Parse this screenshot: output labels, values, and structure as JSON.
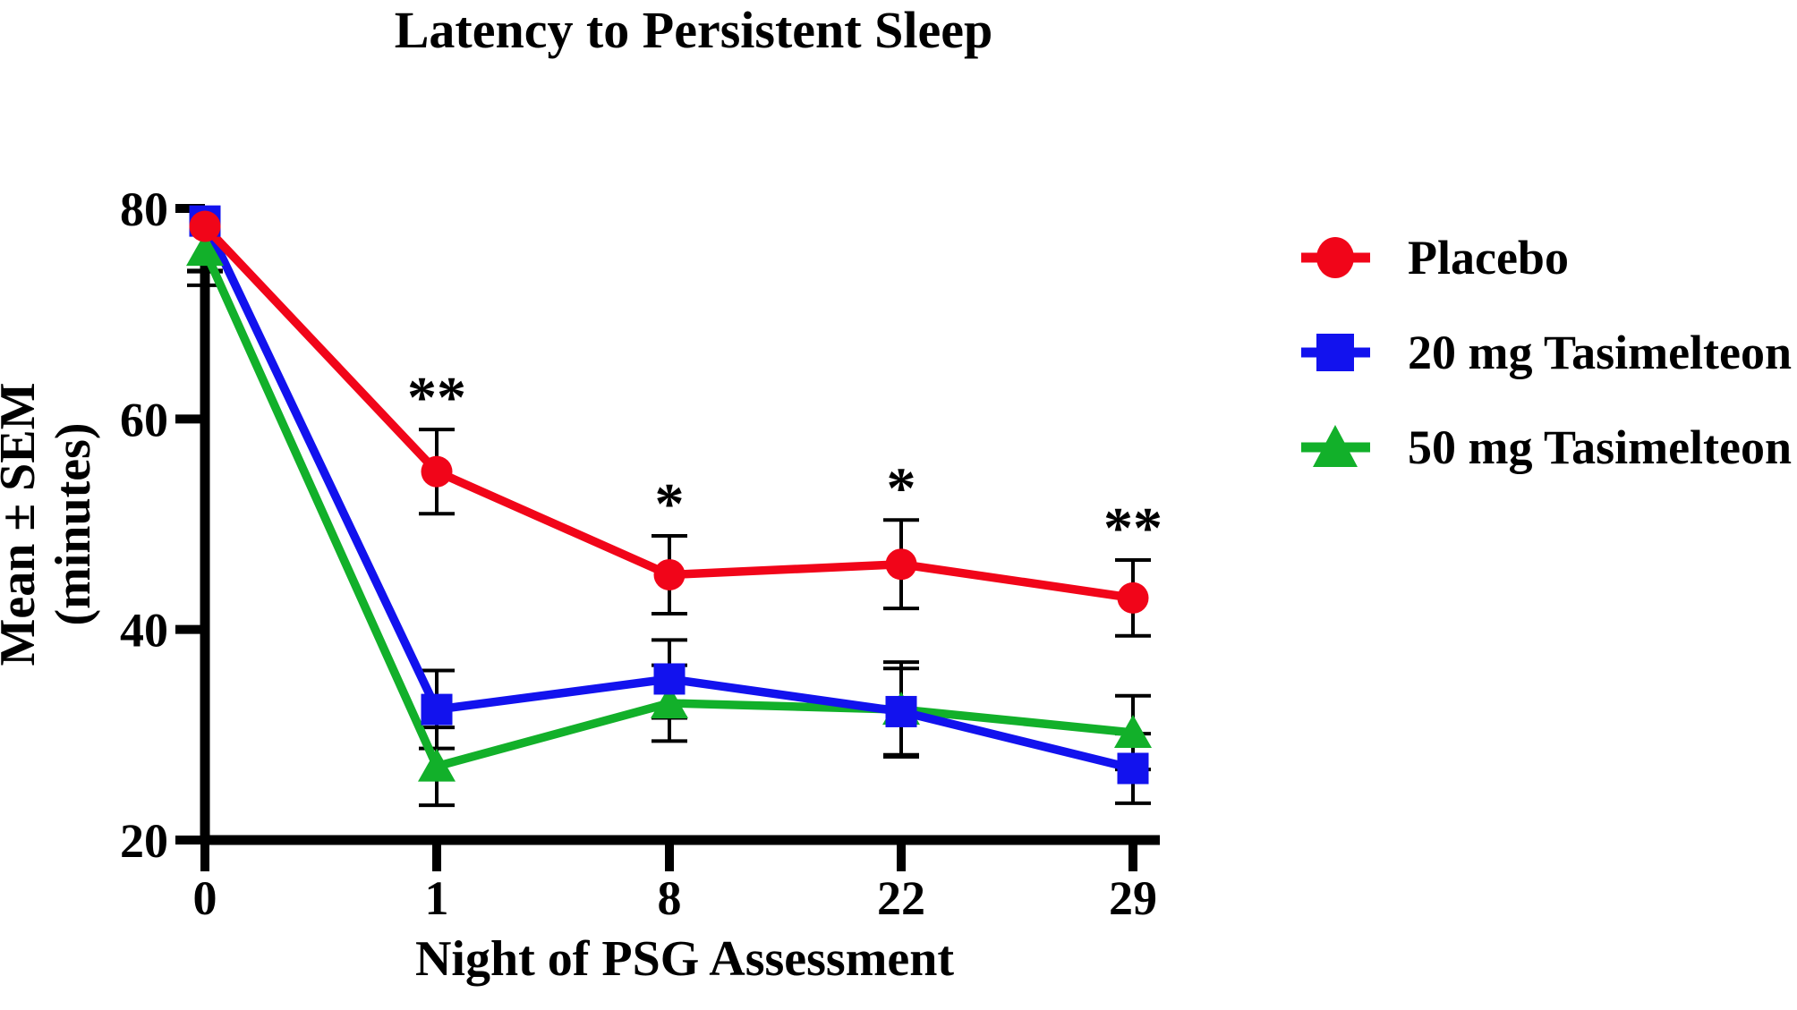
{
  "title": "Latency to Persistent Sleep",
  "chart_data": {
    "type": "line",
    "title": "Latency to Persistent Sleep",
    "xlabel": "Night of PSG Assessment",
    "ylabel_line1": "Mean ± SEM",
    "ylabel_line2": "(minutes)",
    "categories": [
      "0",
      "1",
      "8",
      "22",
      "29"
    ],
    "yticks": [
      20,
      40,
      60,
      80
    ],
    "ylim": [
      20,
      80
    ],
    "grid": false,
    "legend_position": "right",
    "error_bars": "SEM, black caps; upper half hidden behind markers at night 0",
    "series": [
      {
        "name": "Placebo",
        "marker": "circle",
        "color": "#f10519",
        "values": [
          78.3,
          55.0,
          45.2,
          46.2,
          43.0
        ],
        "sem": [
          4.2,
          4.0,
          3.7,
          4.2,
          3.6
        ],
        "upper_error_bar_shown": [
          false,
          true,
          true,
          true,
          true
        ]
      },
      {
        "name": "20 mg Tasimelteon",
        "marker": "square",
        "color": "#1212ee",
        "values": [
          78.8,
          32.4,
          35.3,
          32.2,
          26.8
        ],
        "sem": [
          4.8,
          3.7,
          3.7,
          4.1,
          3.3
        ],
        "upper_error_bar_shown": [
          false,
          true,
          true,
          true,
          true
        ]
      },
      {
        "name": "50 mg Tasimelteon",
        "marker": "triangle",
        "color": "#12b02a",
        "values": [
          76.0,
          27.0,
          33.0,
          32.4,
          30.2
        ],
        "sem": [
          3.3,
          3.7,
          3.6,
          4.5,
          3.5
        ],
        "upper_error_bar_shown": [
          false,
          true,
          true,
          true,
          true
        ]
      }
    ],
    "annotations": [
      {
        "category": "1",
        "label": "**",
        "above_series": "Placebo"
      },
      {
        "category": "8",
        "label": "*",
        "above_series": "Placebo"
      },
      {
        "category": "22",
        "label": "*",
        "above_series": "Placebo"
      },
      {
        "category": "29",
        "label": "**",
        "above_series": "Placebo"
      }
    ],
    "axis_color": "#000000"
  }
}
